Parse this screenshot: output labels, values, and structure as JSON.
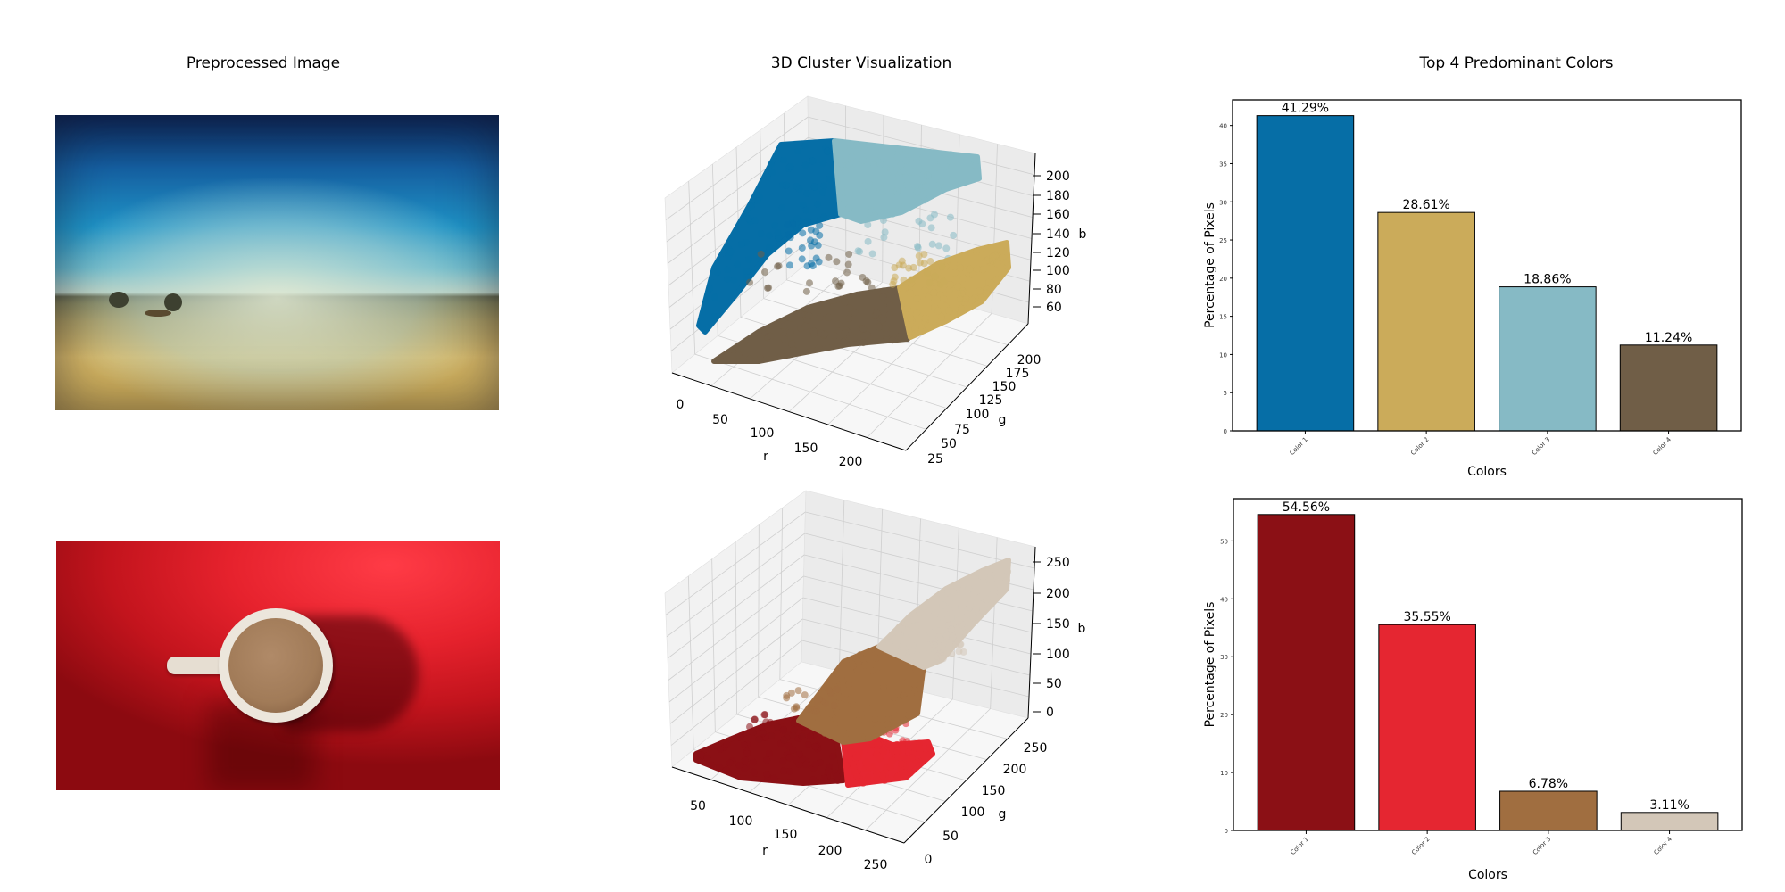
{
  "titles": {
    "left": "Preprocessed Image",
    "middle": "3D Cluster Visualization",
    "right": "Top 4 Predominant Colors"
  },
  "chart_data": [
    {
      "type": "bar",
      "title": "Top 4 Predominant Colors",
      "xlabel": "Colors",
      "ylabel": "Percentage of Pixels",
      "categories": [
        "Color 1",
        "Color 2",
        "Color 3",
        "Color 4"
      ],
      "values": [
        41.29,
        28.61,
        18.86,
        11.24
      ],
      "value_labels": [
        "41.29%",
        "28.61%",
        "18.86%",
        "11.24%"
      ],
      "colors": [
        "#066ea6",
        "#cbab5a",
        "#86bac5",
        "#705e47"
      ],
      "ylim": [
        0,
        43.35
      ],
      "yticks": [
        "0",
        "5",
        "10",
        "15",
        "20",
        "25",
        "30",
        "35",
        "40"
      ],
      "grid": false
    },
    {
      "type": "bar",
      "xlabel": "Colors",
      "ylabel": "Percentage of Pixels",
      "categories": [
        "Color 1",
        "Color 2",
        "Color 3",
        "Color 4"
      ],
      "values": [
        54.56,
        35.55,
        6.78,
        3.11
      ],
      "value_labels": [
        "54.56%",
        "35.55%",
        "6.78%",
        "3.11%"
      ],
      "colors": [
        "#8b1015",
        "#e52631",
        "#a06e40",
        "#d3c7b8"
      ],
      "ylim": [
        0,
        57.3
      ],
      "yticks": [
        "0",
        "10",
        "20",
        "30",
        "40",
        "50"
      ],
      "grid": false
    },
    {
      "type": "scatter",
      "title": "3D Cluster Visualization",
      "projection": "3d",
      "xlabel": "r",
      "ylabel": "g",
      "zlabel": "b",
      "r_ticks": [
        "0",
        "50",
        "100",
        "150",
        "200"
      ],
      "g_ticks": [
        "25",
        "50",
        "75",
        "100",
        "125",
        "150",
        "175",
        "200"
      ],
      "b_ticks": [
        "60",
        "80",
        "100",
        "120",
        "140",
        "160",
        "180",
        "200"
      ],
      "cluster_colors": [
        "#066ea6",
        "#86bac5",
        "#705e47",
        "#cbab5a"
      ]
    },
    {
      "type": "scatter",
      "projection": "3d",
      "xlabel": "r",
      "ylabel": "g",
      "zlabel": "b",
      "r_ticks": [
        "50",
        "100",
        "150",
        "200",
        "250"
      ],
      "g_ticks": [
        "0",
        "50",
        "100",
        "150",
        "200",
        "250"
      ],
      "b_ticks": [
        "0",
        "50",
        "100",
        "150",
        "200",
        "250"
      ],
      "cluster_colors": [
        "#8b1015",
        "#e52631",
        "#a06e40",
        "#d3c7b8"
      ]
    }
  ]
}
